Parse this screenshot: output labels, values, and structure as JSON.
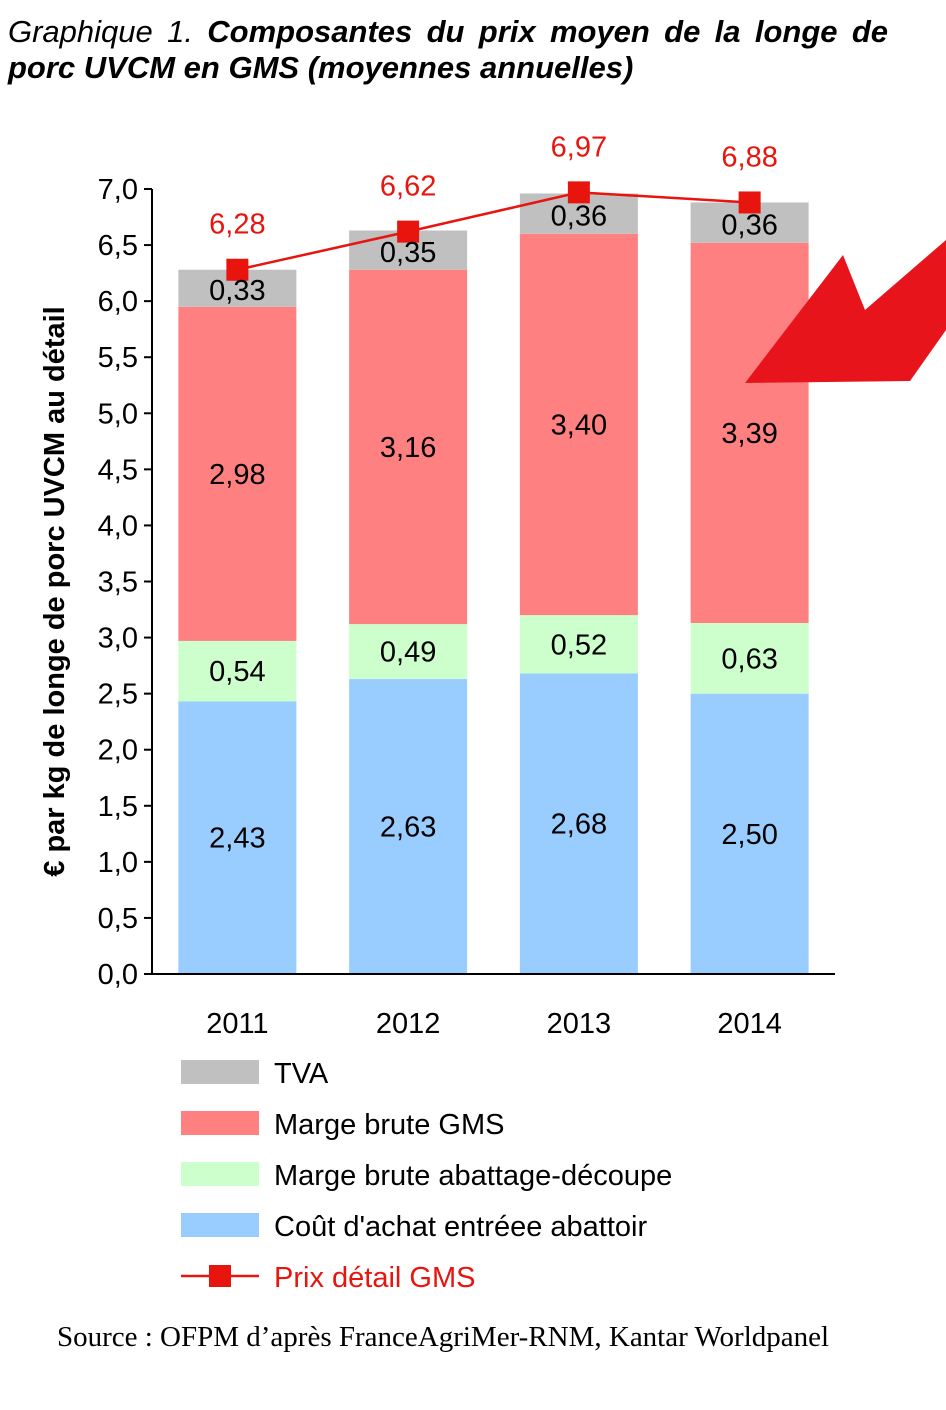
{
  "title": {
    "lead": "Graphique 1.",
    "main": "Composantes du prix moyen de la longe de porc UVCM en GMS (moyennes annuelles)"
  },
  "source": "Source : OFPM d’après FranceAgriMer-RNM, Kantar Worldpanel",
  "colors": {
    "cost": "#99ccff",
    "abattage": "#ccffcc",
    "gms": "#ff8080",
    "tva": "#c0c0c0",
    "price_line": "#e8140e",
    "arrow": "#e8141c"
  },
  "chart_data": {
    "type": "bar",
    "stacked": true,
    "ylabel": "€ par kg de longe de porc UVCM au détail",
    "ylim": [
      0,
      7
    ],
    "yticks": [
      "0,0",
      "0,5",
      "1,0",
      "1,5",
      "2,0",
      "2,5",
      "3,0",
      "3,5",
      "4,0",
      "4,5",
      "5,0",
      "5,5",
      "6,0",
      "6,5",
      "7,0"
    ],
    "categories": [
      "2011",
      "2012",
      "2013",
      "2014"
    ],
    "series": [
      {
        "name": "Coût d'achat entréee abattoir",
        "key": "cost",
        "values": [
          2.43,
          2.63,
          2.68,
          2.5
        ],
        "labels": [
          "2,43",
          "2,63",
          "2,68",
          "2,50"
        ]
      },
      {
        "name": "Marge brute abattage-découpe",
        "key": "abattage",
        "values": [
          0.54,
          0.49,
          0.52,
          0.63
        ],
        "labels": [
          "0,54",
          "0,49",
          "0,52",
          "0,63"
        ]
      },
      {
        "name": "Marge brute GMS",
        "key": "gms",
        "values": [
          2.98,
          3.16,
          3.4,
          3.39
        ],
        "labels": [
          "2,98",
          "3,16",
          "3,40",
          "3,39"
        ]
      },
      {
        "name": "TVA",
        "key": "tva",
        "values": [
          0.33,
          0.35,
          0.36,
          0.36
        ],
        "labels": [
          "0,33",
          "0,35",
          "0,36",
          "0,36"
        ]
      }
    ],
    "line": {
      "name": "Prix détail GMS",
      "values": [
        6.28,
        6.62,
        6.97,
        6.88
      ],
      "labels": [
        "6,28",
        "6,62",
        "6,97",
        "6,88"
      ]
    },
    "legend": [
      "TVA",
      "Marge brute GMS",
      "Marge brute abattage-découpe",
      "Coût d'achat entréee abattoir",
      "Prix détail GMS"
    ],
    "legend_position": "bottom"
  }
}
